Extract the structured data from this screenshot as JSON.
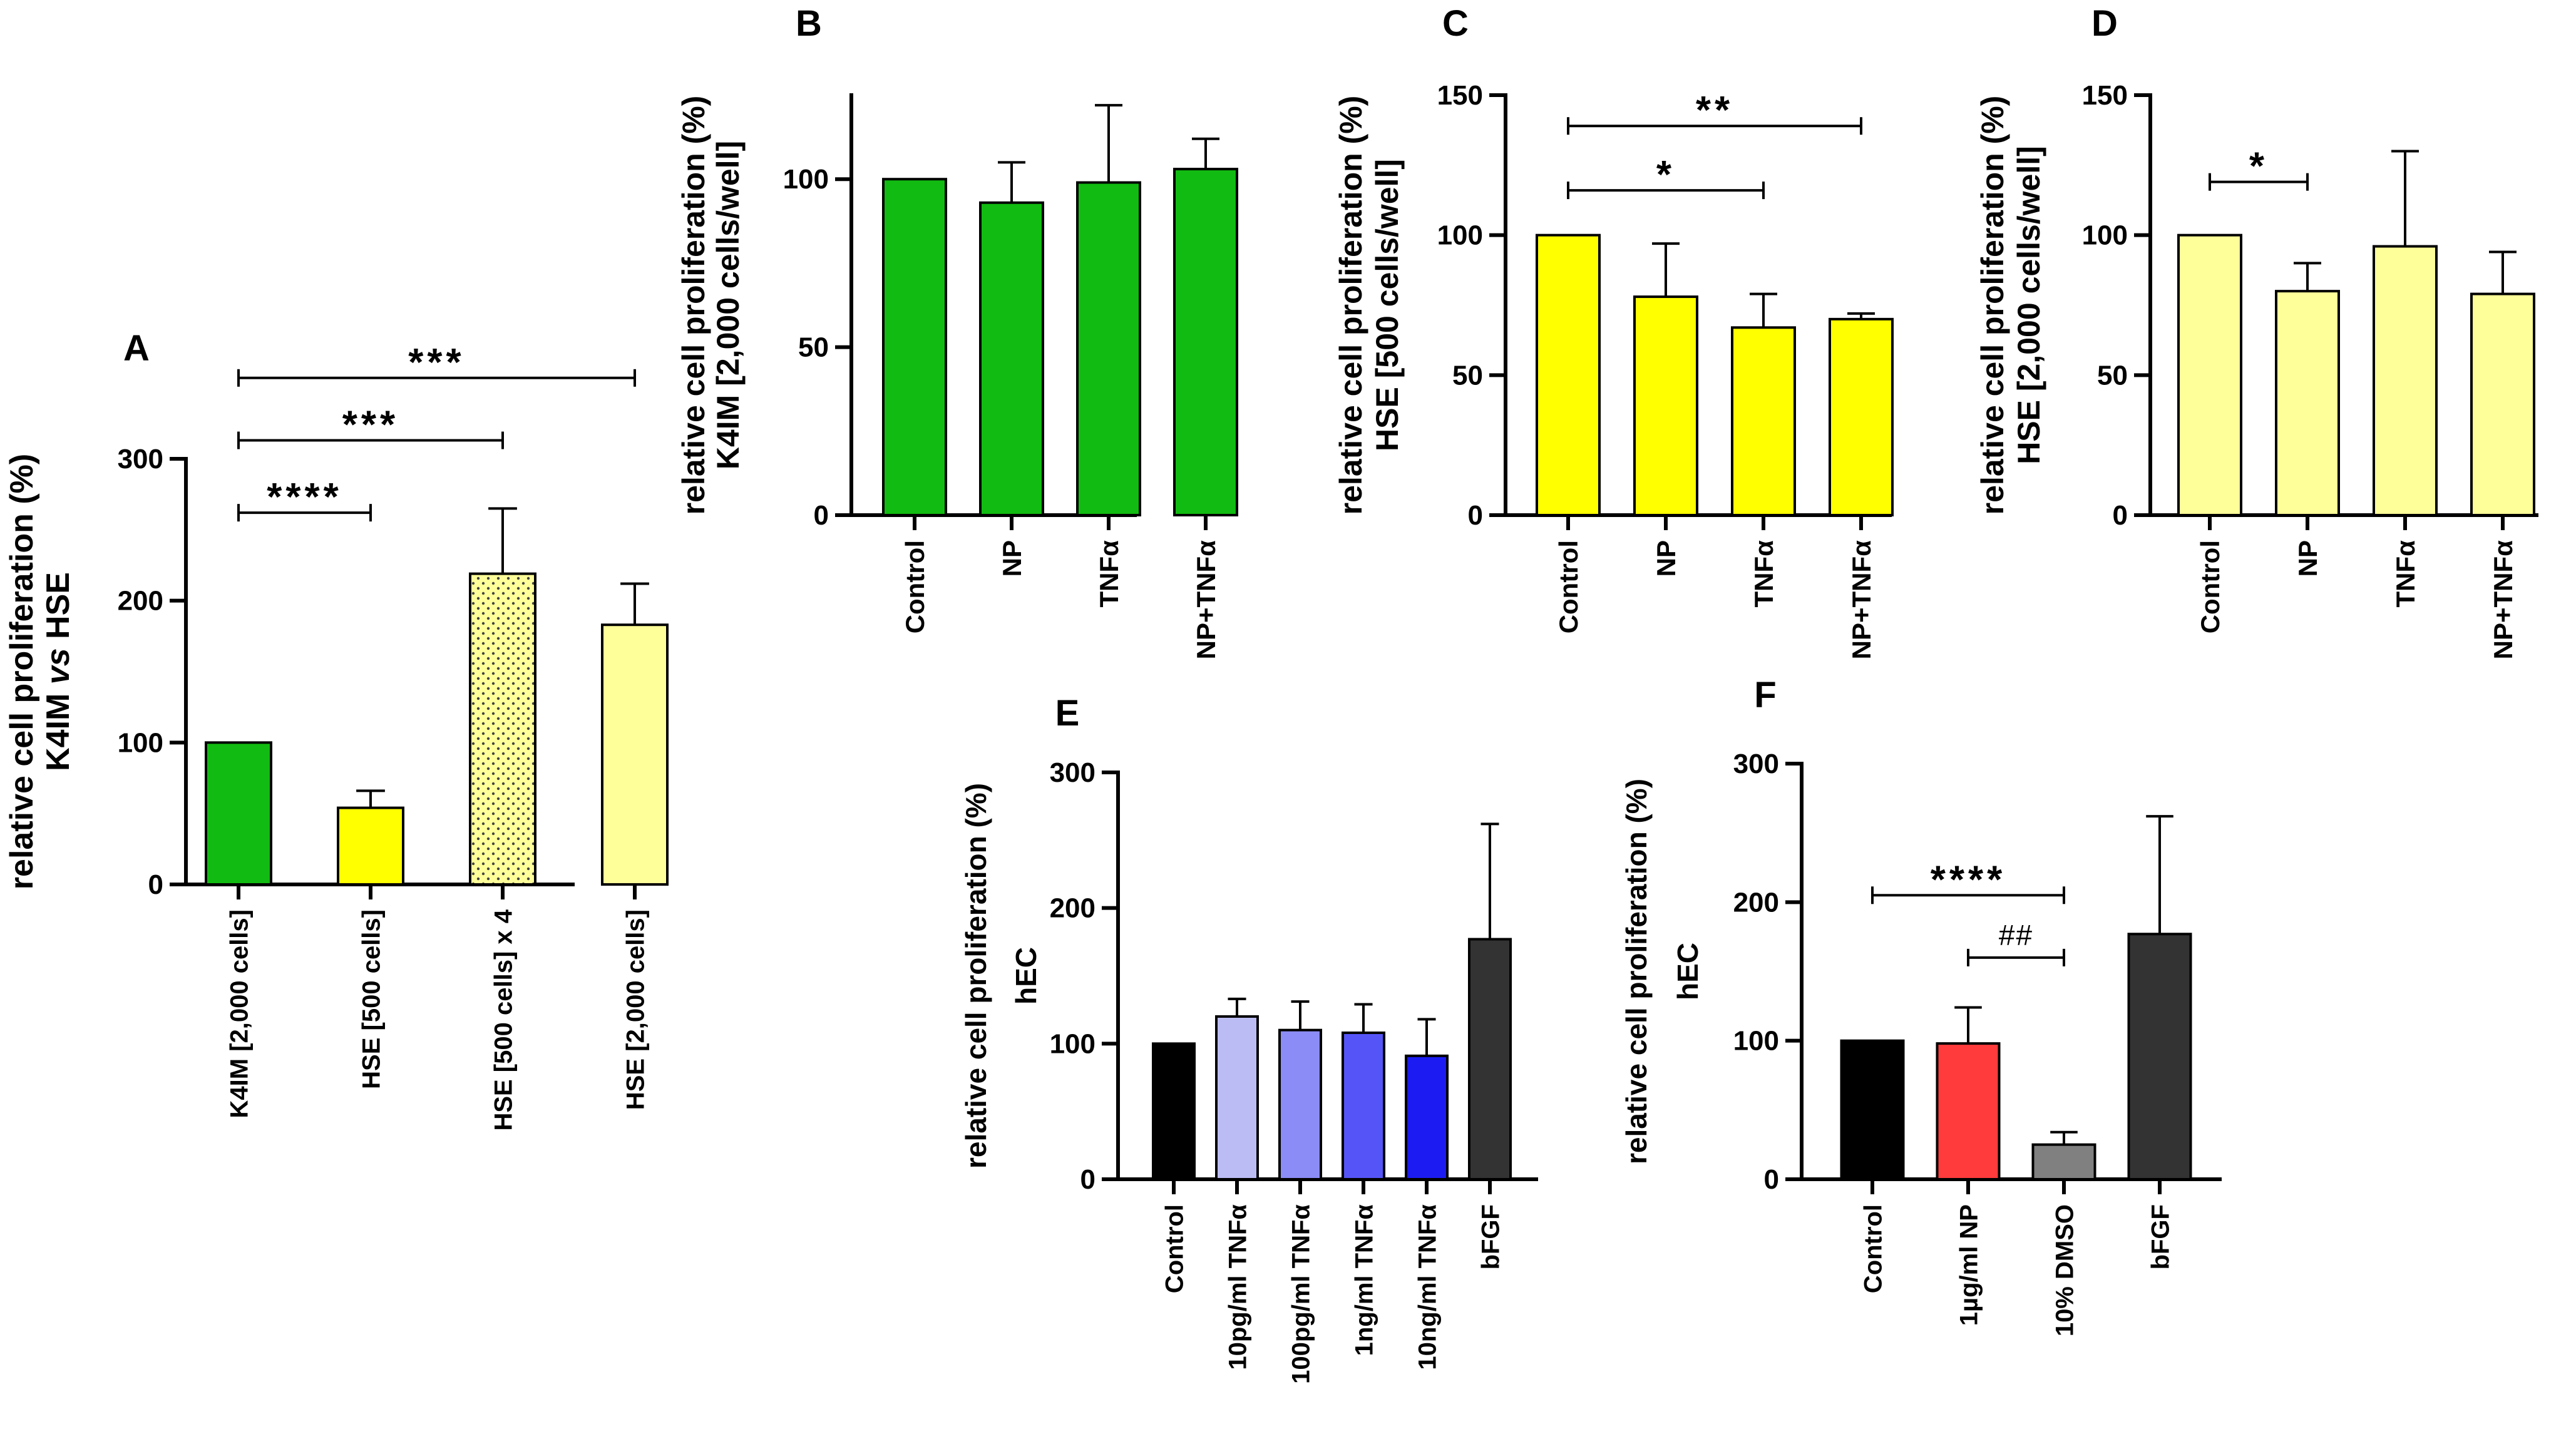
{
  "colors": {
    "green": "#11BB11",
    "yellow": "#FFFF00",
    "paleYellow": "#FFFF99",
    "black": "#000000",
    "red": "#FF3B3B",
    "gray": "#808080",
    "darkGray": "#333333",
    "lav1": "#BCBCF5",
    "lav2": "#8C8CF6",
    "lav3": "#5555F7",
    "blue": "#1C1CF2"
  },
  "chart_data": [
    {
      "panel": "A",
      "type": "bar",
      "ylabel": [
        "relative cell proliferation (%)",
        "K4IM vs HSE"
      ],
      "ylim": [
        0,
        300
      ],
      "yticks": [
        0,
        100,
        200,
        300
      ],
      "categories": [
        "K4IM [2,000 cells]",
        "HSE [500 cells]",
        "HSE [500 cells] x 4",
        "HSE [2,000 cells]"
      ],
      "values": [
        100,
        54,
        219,
        183
      ],
      "errors": [
        0,
        12,
        46,
        29
      ],
      "fills": [
        "green",
        "yellow",
        "yellowDotted",
        "paleYellow"
      ],
      "significance": [
        {
          "from": 0,
          "to": 1,
          "label": "****",
          "y": 262
        },
        {
          "from": 0,
          "to": 2,
          "label": "***",
          "y": 313
        },
        {
          "from": 0,
          "to": 3,
          "label": "***",
          "y": 357
        }
      ]
    },
    {
      "panel": "B",
      "type": "bar",
      "ylabel": [
        "relative cell proliferation (%)",
        "K4IM [2,000 cells/well]"
      ],
      "ylim": [
        0,
        125
      ],
      "yticks": [
        0,
        50,
        100
      ],
      "categories": [
        "Control",
        "NP",
        "TNFα",
        "NP+TNFα"
      ],
      "values": [
        100,
        93,
        99,
        103
      ],
      "errors": [
        0,
        12,
        23,
        9
      ],
      "fills": [
        "green",
        "green",
        "green",
        "green"
      ],
      "significance": []
    },
    {
      "panel": "C",
      "type": "bar",
      "ylabel": [
        "relative cell proliferation (%)",
        "HSE [500 cells/well]"
      ],
      "ylim": [
        0,
        150
      ],
      "yticks": [
        0,
        50,
        100,
        150
      ],
      "categories": [
        "Control",
        "NP",
        "TNFα",
        "NP+TNFα"
      ],
      "values": [
        100,
        78,
        67,
        70
      ],
      "errors": [
        0,
        19,
        12,
        2
      ],
      "fills": [
        "yellow",
        "yellow",
        "yellow",
        "yellow"
      ],
      "significance": [
        {
          "from": 0,
          "to": 2,
          "label": "*",
          "y": 116
        },
        {
          "from": 0,
          "to": 3,
          "label": "**",
          "y": 139
        }
      ]
    },
    {
      "panel": "D",
      "type": "bar",
      "ylabel": [
        "relative cell proliferation (%)",
        "HSE [2,000 cells/well]"
      ],
      "ylim": [
        0,
        150
      ],
      "yticks": [
        0,
        50,
        100,
        150
      ],
      "categories": [
        "Control",
        "NP",
        "TNFα",
        "NP+TNFα"
      ],
      "values": [
        100,
        80,
        96,
        79
      ],
      "errors": [
        0,
        10,
        34,
        15
      ],
      "fills": [
        "paleYellow",
        "paleYellow",
        "paleYellow",
        "paleYellow"
      ],
      "significance": [
        {
          "from": 0,
          "to": 1,
          "label": "*",
          "y": 119
        }
      ]
    },
    {
      "panel": "E",
      "type": "bar",
      "ylabel": [
        "relative cell proliferation (%)",
        "hEC"
      ],
      "ylim": [
        0,
        300
      ],
      "yticks": [
        0,
        100,
        200,
        300
      ],
      "categories": [
        "Control",
        "10pg/ml TNFα",
        "100pg/ml TNFα",
        "1ng/ml TNFα",
        "10ng/ml TNFα",
        "bFGF"
      ],
      "values": [
        100,
        120,
        110,
        108,
        91,
        177
      ],
      "errors": [
        0,
        13,
        21,
        21,
        27,
        85
      ],
      "fills": [
        "black",
        "lav1",
        "lav2",
        "lav3",
        "blue",
        "darkGray"
      ],
      "significance": []
    },
    {
      "panel": "F",
      "type": "bar",
      "ylabel": [
        "relative cell proliferation (%)",
        "hEC"
      ],
      "ylim": [
        0,
        300
      ],
      "yticks": [
        0,
        100,
        200,
        300
      ],
      "categories": [
        "Control",
        "1µg/ml NP",
        "10% DMSO",
        "bFGF"
      ],
      "values": [
        100,
        98,
        25,
        177
      ],
      "errors": [
        0,
        26,
        9,
        85
      ],
      "fills": [
        "black",
        "red",
        "gray",
        "darkGray"
      ],
      "significance": [
        {
          "from": 0,
          "to": 2,
          "label": "****",
          "y": 205
        },
        {
          "from": 1,
          "to": 2,
          "label": "##",
          "y": 160
        }
      ]
    }
  ]
}
